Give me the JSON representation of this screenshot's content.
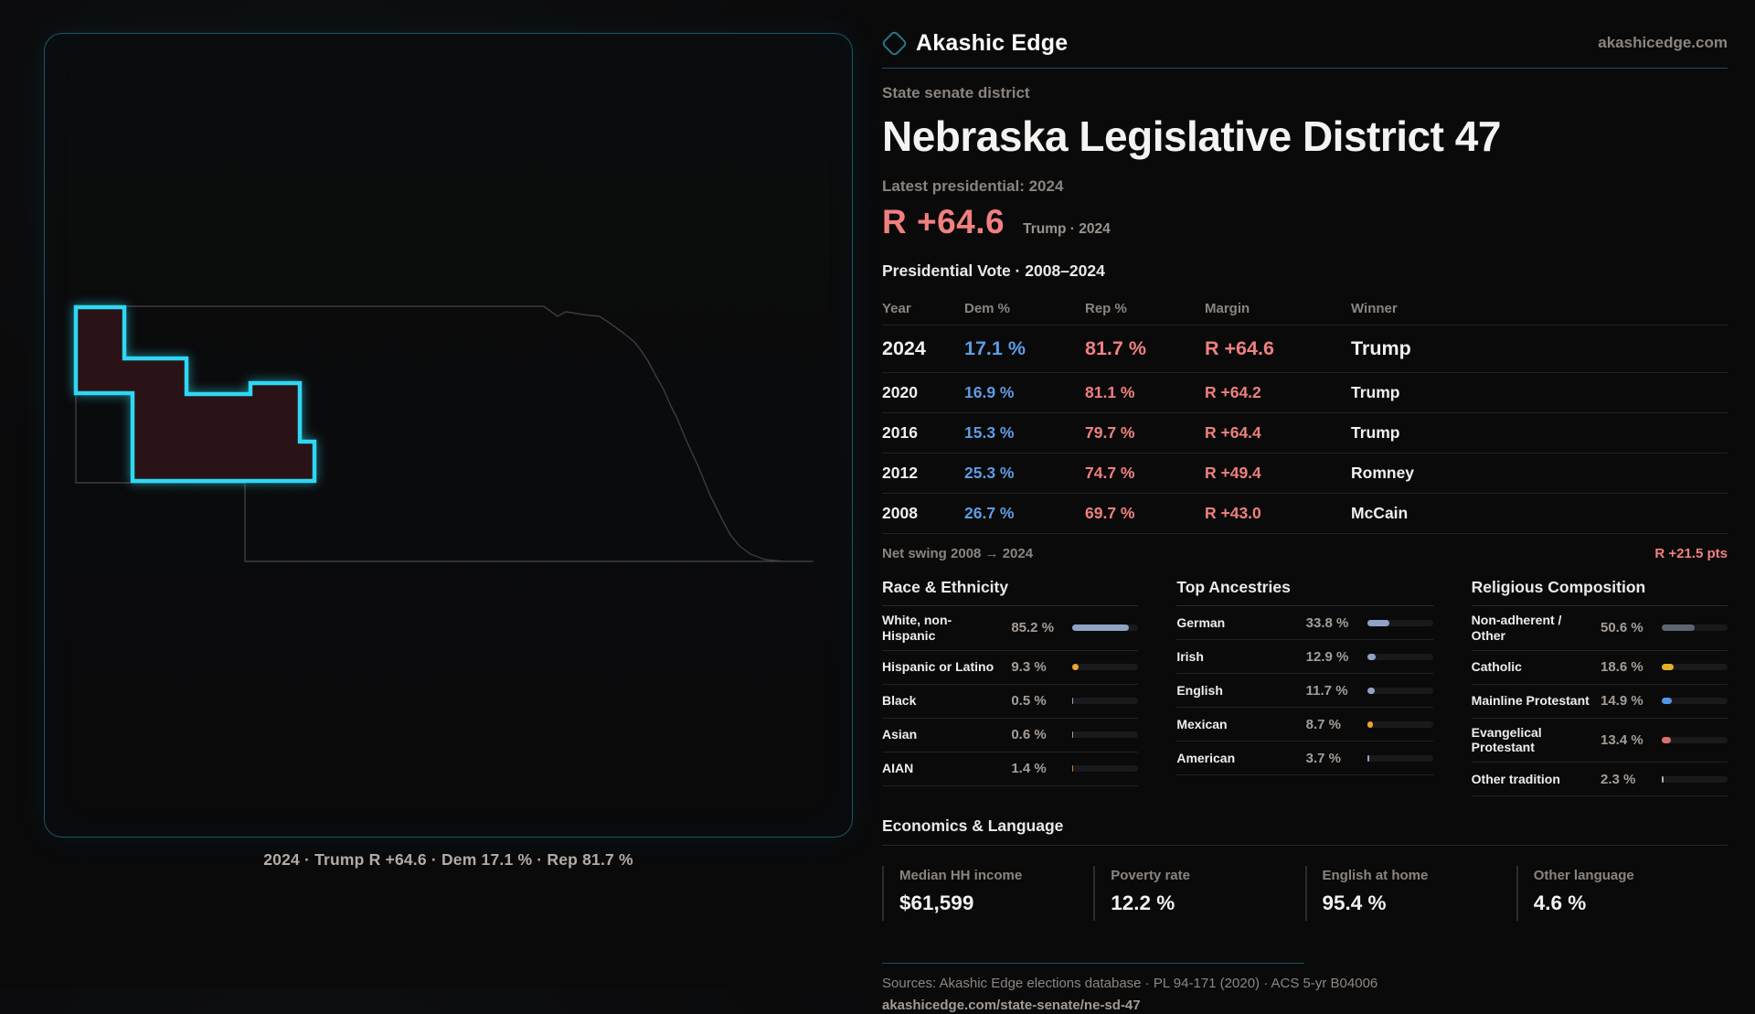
{
  "theme": {
    "bg": "#0a0a0b",
    "panel_border": "#1b5664",
    "accent_teal": "#2ed8f3",
    "accent_red": "#f0807f",
    "dem_blue": "#5f9ce2",
    "district_fill": "#2a1316",
    "state_line": "#3d3d41",
    "bar_track": "#1a1a1c"
  },
  "brand": {
    "name": "Akashic Edge",
    "site": "akashicedge.com",
    "logo_icon": "diamond-icon"
  },
  "page": {
    "kicker": "State senate district",
    "title": "Nebraska Legislative District 47",
    "latest_label": "Latest presidential: 2024",
    "margin_value": "R +64.6",
    "margin_context": "Trump · 2024"
  },
  "map": {
    "caption": "2024 · Trump R +64.6 · Dem 17.1 % · Rep 81.7 %"
  },
  "vote_table": {
    "title": "Presidential Vote · 2008–2024",
    "columns": [
      "Year",
      "Dem %",
      "Rep %",
      "Margin",
      "Winner"
    ],
    "rows": [
      {
        "year": "2024",
        "dem": "17.1 %",
        "rep": "81.7 %",
        "margin": "R +64.6",
        "winner": "Trump"
      },
      {
        "year": "2020",
        "dem": "16.9 %",
        "rep": "81.1 %",
        "margin": "R +64.2",
        "winner": "Trump"
      },
      {
        "year": "2016",
        "dem": "15.3 %",
        "rep": "79.7 %",
        "margin": "R +64.4",
        "winner": "Trump"
      },
      {
        "year": "2012",
        "dem": "25.3 %",
        "rep": "74.7 %",
        "margin": "R +49.4",
        "winner": "Romney"
      },
      {
        "year": "2008",
        "dem": "26.7 %",
        "rep": "69.7 %",
        "margin": "R +43.0",
        "winner": "McCain"
      }
    ],
    "net_swing_label": "Net swing 2008 → 2024",
    "net_swing_value": "R +21.5 pts"
  },
  "demographics": [
    {
      "title": "Race & Ethnicity",
      "rows": [
        {
          "label": "White, non-Hispanic",
          "value": "85.2 %",
          "pct": 85.2,
          "color": "#8fa3c4"
        },
        {
          "label": "Hispanic or Latino",
          "value": "9.3 %",
          "pct": 9.3,
          "color": "#efa22e"
        },
        {
          "label": "Black",
          "value": "0.5 %",
          "pct": 0.5,
          "color": "#8fa3c4"
        },
        {
          "label": "Asian",
          "value": "0.6 %",
          "pct": 0.6,
          "color": "#8fa3c4"
        },
        {
          "label": "AIAN",
          "value": "1.4 %",
          "pct": 1.4,
          "color": "#c97f2a"
        }
      ]
    },
    {
      "title": "Top Ancestries",
      "rows": [
        {
          "label": "German",
          "value": "33.8 %",
          "pct": 33.8,
          "color": "#8fa3c4"
        },
        {
          "label": "Irish",
          "value": "12.9 %",
          "pct": 12.9,
          "color": "#8fa3c4"
        },
        {
          "label": "English",
          "value": "11.7 %",
          "pct": 11.7,
          "color": "#8fa3c4"
        },
        {
          "label": "Mexican",
          "value": "8.7 %",
          "pct": 8.7,
          "color": "#efa22e"
        },
        {
          "label": "American",
          "value": "3.7 %",
          "pct": 3.7,
          "color": "#8fa3c4"
        }
      ]
    },
    {
      "title": "Religious Composition",
      "rows": [
        {
          "label": "Non-adherent / Other",
          "value": "50.6 %",
          "pct": 50.6,
          "color": "#5d6573"
        },
        {
          "label": "Catholic",
          "value": "18.6 %",
          "pct": 18.6,
          "color": "#e3b02d"
        },
        {
          "label": "Mainline Protestant",
          "value": "14.9 %",
          "pct": 14.9,
          "color": "#4f97e8"
        },
        {
          "label": "Evangelical Protestant",
          "value": "13.4 %",
          "pct": 13.4,
          "color": "#e06c6e"
        },
        {
          "label": "Other tradition",
          "value": "2.3 %",
          "pct": 2.3,
          "color": "#aab0b8"
        }
      ]
    }
  ],
  "economics": {
    "title": "Economics & Language",
    "stats": [
      {
        "label": "Median HH income",
        "value": "$61,599"
      },
      {
        "label": "Poverty rate",
        "value": "12.2 %"
      },
      {
        "label": "English at home",
        "value": "95.4 %"
      },
      {
        "label": "Other language",
        "value": "4.6 %"
      }
    ]
  },
  "footer": {
    "sources": "Sources: Akashic Edge elections database · PL 94-171 (2020) · ACS 5-yr B04006",
    "permalink": "akashicedge.com/state-senate/ne-sd-47"
  },
  "chart_data": [
    {
      "type": "table",
      "title": "Presidential Vote · 2008–2024",
      "columns": [
        "Year",
        "Dem %",
        "Rep %",
        "Margin",
        "Winner"
      ],
      "rows": [
        [
          "2024",
          17.1,
          81.7,
          "R +64.6",
          "Trump"
        ],
        [
          "2020",
          16.9,
          81.1,
          "R +64.2",
          "Trump"
        ],
        [
          "2016",
          15.3,
          79.7,
          "R +64.4",
          "Trump"
        ],
        [
          "2012",
          25.3,
          74.7,
          "R +49.4",
          "Romney"
        ],
        [
          "2008",
          26.7,
          69.7,
          "R +43.0",
          "McCain"
        ]
      ],
      "annotations": [
        "Net swing 2008 → 2024: R +21.5 pts"
      ]
    },
    {
      "type": "bar",
      "title": "Race & Ethnicity",
      "categories": [
        "White, non-Hispanic",
        "Hispanic or Latino",
        "Black",
        "Asian",
        "AIAN"
      ],
      "values": [
        85.2,
        9.3,
        0.5,
        0.6,
        1.4
      ],
      "unit": "%",
      "xlim": [
        0,
        100
      ],
      "orientation": "horizontal"
    },
    {
      "type": "bar",
      "title": "Top Ancestries",
      "categories": [
        "German",
        "Irish",
        "English",
        "Mexican",
        "American"
      ],
      "values": [
        33.8,
        12.9,
        11.7,
        8.7,
        3.7
      ],
      "unit": "%",
      "xlim": [
        0,
        100
      ],
      "orientation": "horizontal"
    },
    {
      "type": "bar",
      "title": "Religious Composition",
      "categories": [
        "Non-adherent / Other",
        "Catholic",
        "Mainline Protestant",
        "Evangelical Protestant",
        "Other tradition"
      ],
      "values": [
        50.6,
        18.6,
        14.9,
        13.4,
        2.3
      ],
      "unit": "%",
      "xlim": [
        0,
        100
      ],
      "orientation": "horizontal"
    }
  ]
}
